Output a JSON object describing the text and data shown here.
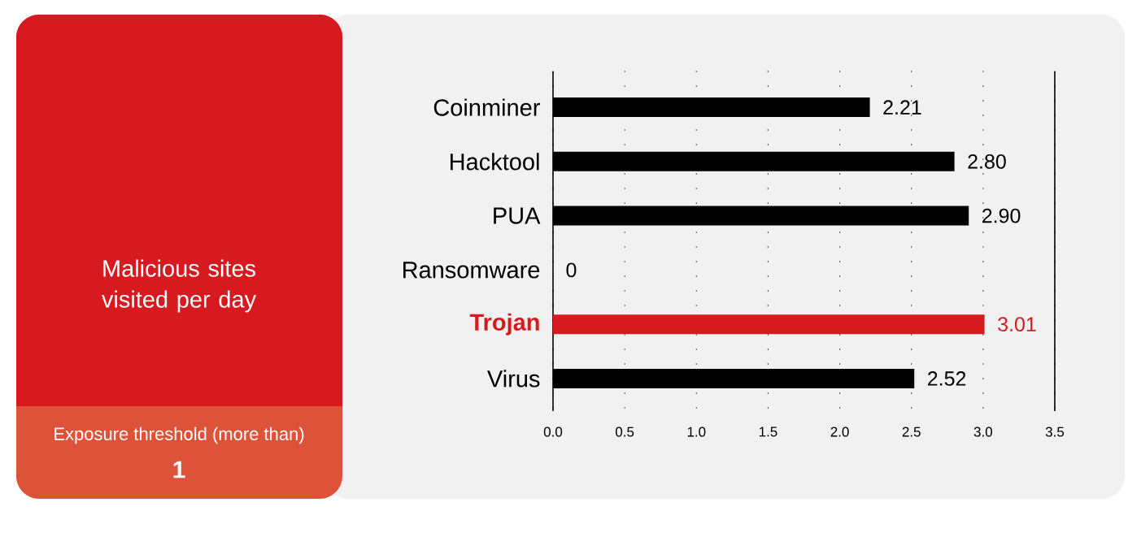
{
  "chart_data": [
    {
      "type": "other",
      "title": "Malicious sites visited per day",
      "annotations": [
        "Exposure threshold (more than)",
        "1"
      ]
    },
    {
      "type": "bar",
      "orientation": "horizontal",
      "categories": [
        "Coinminer",
        "Hacktool",
        "PUA",
        "Ransomware",
        "Trojan",
        "Virus"
      ],
      "values": [
        2.21,
        2.8,
        2.9,
        0,
        3.01,
        2.52
      ],
      "colors": [
        "#000000",
        "#000000",
        "#000000",
        "#000000",
        "#d71920",
        "#000000"
      ],
      "value_labels": [
        "2.21",
        "2.80",
        "2.90",
        "0",
        "3.01",
        "2.52"
      ],
      "xlim": [
        0,
        3.5
      ],
      "xticks": [
        {
          "value": 0,
          "label": "0.0"
        },
        0.5,
        {
          "value": 1,
          "label": "1.0"
        },
        1.5,
        {
          "value": 2,
          "label": "2.0"
        },
        2.5,
        {
          "value": 3,
          "label": "3.0"
        },
        3.5
      ],
      "grid": "x"
    }
  ]
}
